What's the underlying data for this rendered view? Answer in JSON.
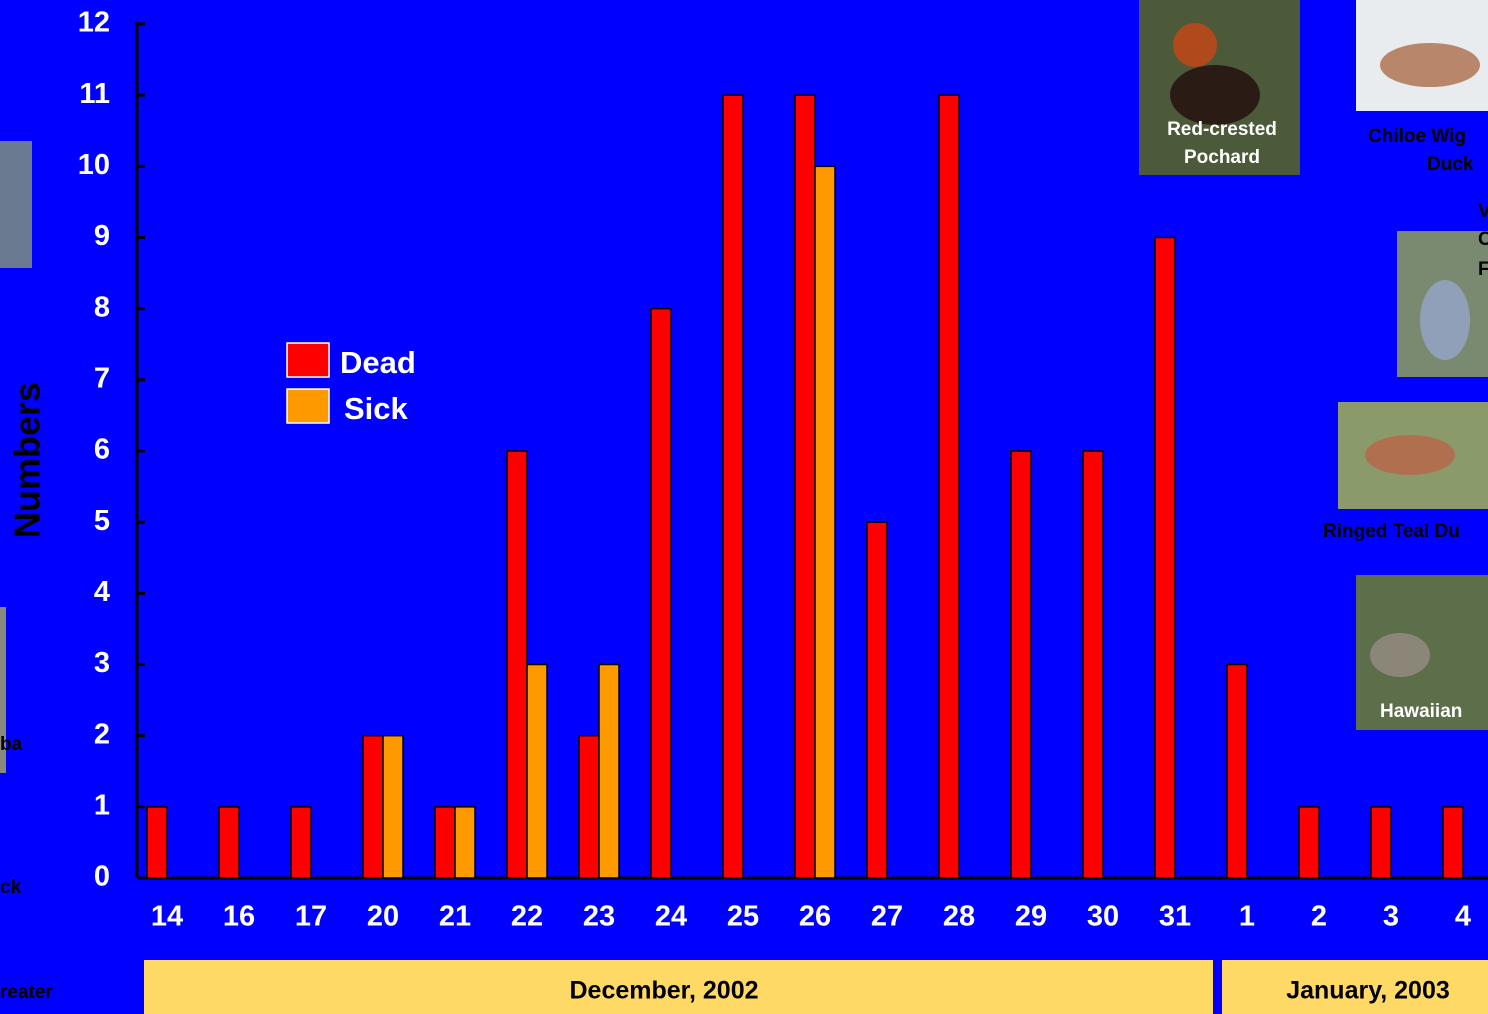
{
  "chart_data": {
    "type": "bar",
    "y_label": "Numbers",
    "categories": [
      "14",
      "16",
      "17",
      "20",
      "21",
      "22",
      "23",
      "24",
      "25",
      "26",
      "27",
      "28",
      "29",
      "30",
      "31",
      "1",
      "2",
      "3",
      "4"
    ],
    "series": [
      {
        "name": "Dead",
        "color": "#ff0000",
        "values": [
          1,
          1,
          1,
          2,
          1,
          6,
          2,
          8,
          11,
          11,
          5,
          11,
          6,
          6,
          9,
          3,
          1,
          1,
          1
        ]
      },
      {
        "name": "Sick",
        "color": "#ff9900",
        "values": [
          null,
          null,
          null,
          2,
          1,
          3,
          3,
          null,
          null,
          10,
          null,
          null,
          null,
          null,
          null,
          null,
          null,
          null,
          null
        ]
      }
    ],
    "ylim": [
      0,
      12
    ],
    "yticks": [
      0,
      1,
      2,
      3,
      4,
      5,
      6,
      7,
      8,
      9,
      10,
      11,
      12
    ],
    "group_labels": [
      "December, 2002",
      "January, 2003"
    ],
    "annotations": [
      "Red-crested",
      "Pochard",
      "Chiloe Wig",
      "Duck",
      "V",
      "C",
      "F",
      "Ringed Teal Du",
      "Hawaiian",
      "ba",
      "ck",
      "reater"
    ]
  }
}
